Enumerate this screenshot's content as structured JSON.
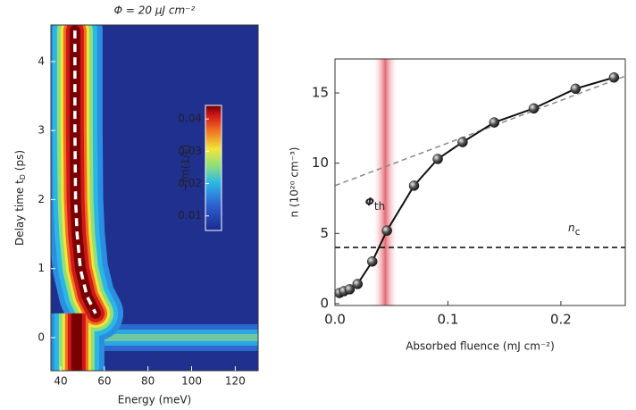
{
  "chart_data": [
    {
      "type": "heatmap",
      "title": "Φ = 20 µJ cm⁻²",
      "x_label": "Energy (meV)",
      "y_label": "Delay time t",
      "y_label_sub": "D",
      "y_label_end": " (ps)",
      "xlim": [
        35.5,
        130.5
      ],
      "xticks": [
        40,
        60,
        80,
        100,
        120
      ],
      "ylim": [
        -0.48,
        4.53
      ],
      "yticks": [
        0,
        1,
        2,
        3,
        4
      ],
      "dashed_line": {
        "x": [
          46.5,
          46.5,
          46.8,
          47.5,
          49,
          52,
          56
        ],
        "y": [
          4.45,
          3,
          2,
          1.5,
          1,
          0.6,
          0.35
        ],
        "color": "#ffffff"
      },
      "colorbar": {
        "label": "−Im(1/ε)",
        "lim": [
          0.0055,
          0.0442
        ],
        "ticks": [
          0.01,
          0.02,
          0.03,
          0.04
        ]
      }
    },
    {
      "type": "line",
      "x_label": "Absorbed fluence (mJ cm⁻²)",
      "y_label": "n (10²⁰ cm⁻³)",
      "xlim": [
        0,
        0.257
      ],
      "xticks": [
        {
          "value": 0,
          "label": "0.0"
        },
        0.1,
        0.2
      ],
      "ylim": [
        -0.13,
        17.42
      ],
      "yticks": [
        0,
        5,
        10,
        15
      ],
      "series": [
        {
          "color": "#111111",
          "x": [
            0.004,
            0.008,
            0.013,
            0.02,
            0.033,
            0.046,
            0.07,
            0.091,
            0.113,
            0.141,
            0.176,
            0.213,
            0.247
          ],
          "values": [
            0.76,
            0.89,
            1.02,
            1.4,
            3.0,
            5.2,
            8.4,
            10.3,
            11.5,
            12.9,
            13.9,
            15.3,
            16.1
          ]
        }
      ],
      "fit_line": {
        "x": [
          0,
          0.257
        ],
        "y": [
          8.4,
          16.2
        ],
        "color": "#888888"
      },
      "threshold": {
        "label": "Φ",
        "label_sub": "th",
        "band": [
          0.033,
          0.056
        ],
        "color": "#e0505a"
      },
      "critical_density": {
        "label": "n",
        "label_sub": "c",
        "value": 4.0
      }
    }
  ]
}
